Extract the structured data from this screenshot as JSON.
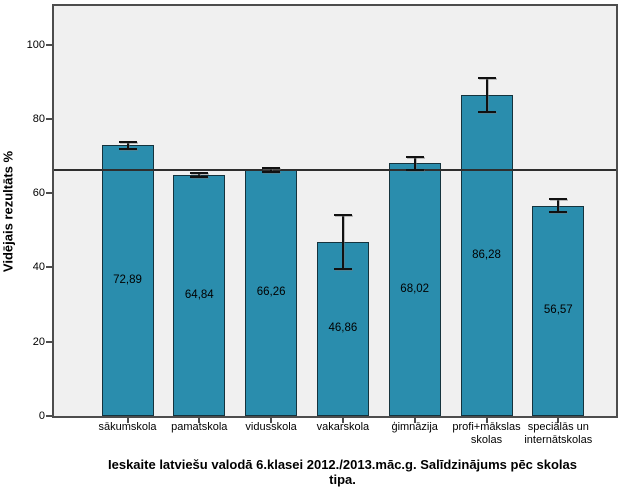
{
  "figure": {
    "caption": {
      "line1": "Ieskaite latviešu valodā 6.klasei 2012./2013.māc.g. Salīdzinājums pēc skolas",
      "line2": "tipa."
    }
  },
  "chart_data": {
    "type": "bar",
    "title": "Ieskaite latviešu valodā 6.klasei 2012./2013.māc.g. Salīdzinājums pēc skolas tipa.",
    "xlabel": "",
    "ylabel": "Vidējais rezultāts %",
    "ylim": [
      0,
      110
    ],
    "yticks": [
      0,
      20,
      40,
      60,
      80,
      100
    ],
    "grid": false,
    "legend": "none",
    "reference_line": 66.2,
    "categories": [
      "sākumskola",
      "pamatskola",
      "vidusskola",
      "vakarskola",
      "ģimnāzija",
      "profi+mākslas skolas",
      "speciālās un internātskolas"
    ],
    "category_lines": [
      [
        "sākumskola"
      ],
      [
        "pamatskola"
      ],
      [
        "vidusskola"
      ],
      [
        "vakarskola"
      ],
      [
        "ģimnāzija"
      ],
      [
        "profi+mākslas",
        "skolas"
      ],
      [
        "speciālās un",
        "internātskolas"
      ]
    ],
    "values": [
      72.89,
      64.84,
      66.26,
      46.86,
      68.02,
      86.28,
      56.57
    ],
    "value_labels": [
      "72,89",
      "64,84",
      "66,26",
      "46,86",
      "68,02",
      "86,28",
      "56,57"
    ],
    "error_bars": [
      [
        72.0,
        73.8
      ],
      [
        64.3,
        65.4
      ],
      [
        65.8,
        66.7
      ],
      [
        39.7,
        54.2
      ],
      [
        66.2,
        69.8
      ],
      [
        81.7,
        90.9
      ],
      [
        55.0,
        58.3
      ]
    ],
    "colors": {
      "bar_fill": "#2a8dad",
      "bar_border": "#15333d",
      "plot_background": "#f0f0f0",
      "frame_border": "#4d4d4d",
      "reference_line": "#2e2e2e",
      "error_bar": "#111111"
    }
  }
}
